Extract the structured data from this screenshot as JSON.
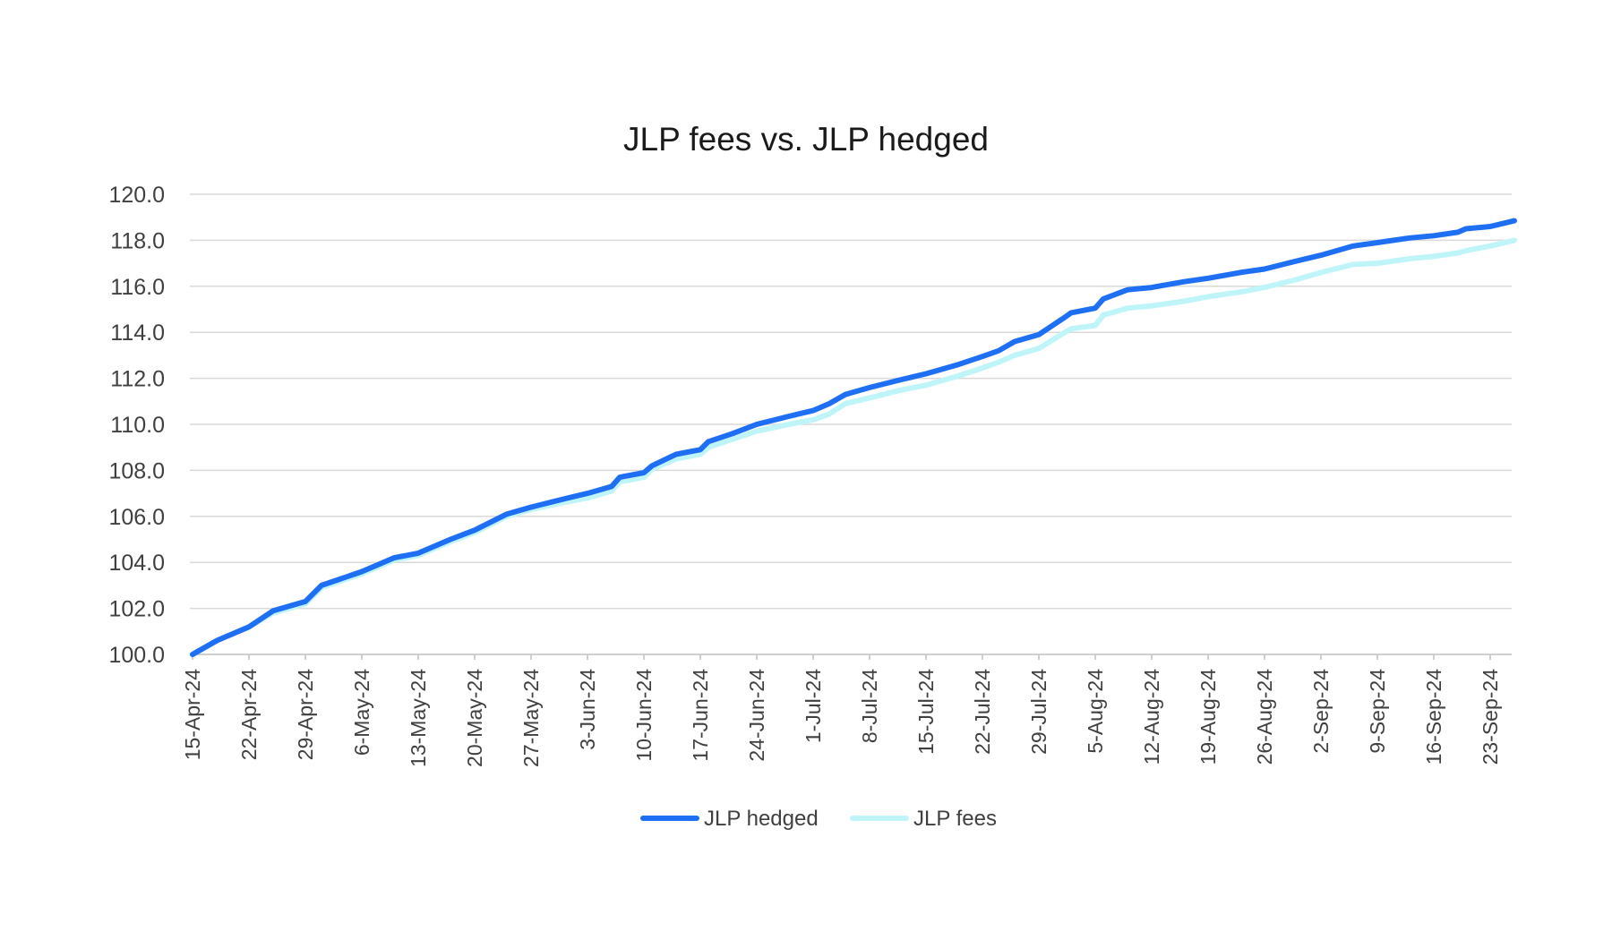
{
  "chart_data": {
    "type": "line",
    "title": "JLP fees vs. JLP hedged",
    "xlabel": "",
    "ylabel": "",
    "x_start": "2024-04-15",
    "x_end": "2024-09-26",
    "x_tick_labels": [
      "15-Apr-24",
      "22-Apr-24",
      "29-Apr-24",
      "6-May-24",
      "13-May-24",
      "20-May-24",
      "27-May-24",
      "3-Jun-24",
      "10-Jun-24",
      "17-Jun-24",
      "24-Jun-24",
      "1-Jul-24",
      "8-Jul-24",
      "15-Jul-24",
      "22-Jul-24",
      "29-Jul-24",
      "5-Aug-24",
      "12-Aug-24",
      "19-Aug-24",
      "26-Aug-24",
      "2-Sep-24",
      "9-Sep-24",
      "16-Sep-24",
      "23-Sep-24"
    ],
    "y_tick_labels": [
      "100.0",
      "102.0",
      "104.0",
      "106.0",
      "108.0",
      "110.0",
      "112.0",
      "114.0",
      "116.0",
      "118.0",
      "120.0"
    ],
    "ylim": [
      100,
      120
    ],
    "grid": true,
    "legend_position": "bottom",
    "series": [
      {
        "name": "JLP hedged",
        "color": "#1f6ff5",
        "x": [
          "2024-04-15",
          "2024-04-18",
          "2024-04-22",
          "2024-04-25",
          "2024-04-29",
          "2024-05-01",
          "2024-05-06",
          "2024-05-10",
          "2024-05-13",
          "2024-05-17",
          "2024-05-20",
          "2024-05-24",
          "2024-05-27",
          "2024-05-31",
          "2024-06-03",
          "2024-06-06",
          "2024-06-07",
          "2024-06-10",
          "2024-06-11",
          "2024-06-14",
          "2024-06-17",
          "2024-06-18",
          "2024-06-21",
          "2024-06-24",
          "2024-06-28",
          "2024-07-01",
          "2024-07-03",
          "2024-07-05",
          "2024-07-08",
          "2024-07-12",
          "2024-07-15",
          "2024-07-19",
          "2024-07-22",
          "2024-07-24",
          "2024-07-26",
          "2024-07-29",
          "2024-08-01",
          "2024-08-02",
          "2024-08-05",
          "2024-08-06",
          "2024-08-09",
          "2024-08-12",
          "2024-08-16",
          "2024-08-19",
          "2024-08-23",
          "2024-08-26",
          "2024-08-30",
          "2024-09-02",
          "2024-09-06",
          "2024-09-09",
          "2024-09-13",
          "2024-09-16",
          "2024-09-19",
          "2024-09-20",
          "2024-09-23",
          "2024-09-26"
        ],
        "values": [
          100.0,
          100.6,
          101.2,
          101.9,
          102.3,
          103.0,
          103.6,
          104.2,
          104.4,
          105.0,
          105.4,
          106.1,
          106.4,
          106.75,
          107.0,
          107.3,
          107.7,
          107.9,
          108.2,
          108.7,
          108.9,
          109.25,
          109.6,
          110.0,
          110.35,
          110.6,
          110.9,
          111.3,
          111.6,
          111.95,
          112.2,
          112.6,
          112.95,
          113.2,
          113.6,
          113.9,
          114.6,
          114.85,
          115.05,
          115.45,
          115.85,
          115.95,
          116.2,
          116.35,
          116.6,
          116.75,
          117.1,
          117.35,
          117.75,
          117.9,
          118.1,
          118.2,
          118.35,
          118.5,
          118.6,
          118.85
        ]
      },
      {
        "name": "JLP fees",
        "color": "#bff5f9",
        "x": [
          "2024-04-15",
          "2024-04-18",
          "2024-04-22",
          "2024-04-25",
          "2024-04-29",
          "2024-05-01",
          "2024-05-06",
          "2024-05-10",
          "2024-05-13",
          "2024-05-17",
          "2024-05-20",
          "2024-05-24",
          "2024-05-27",
          "2024-05-31",
          "2024-06-03",
          "2024-06-06",
          "2024-06-07",
          "2024-06-10",
          "2024-06-11",
          "2024-06-14",
          "2024-06-17",
          "2024-06-18",
          "2024-06-21",
          "2024-06-24",
          "2024-06-28",
          "2024-07-01",
          "2024-07-03",
          "2024-07-05",
          "2024-07-08",
          "2024-07-12",
          "2024-07-15",
          "2024-07-19",
          "2024-07-22",
          "2024-07-24",
          "2024-07-26",
          "2024-07-29",
          "2024-08-01",
          "2024-08-02",
          "2024-08-05",
          "2024-08-06",
          "2024-08-09",
          "2024-08-12",
          "2024-08-16",
          "2024-08-19",
          "2024-08-23",
          "2024-08-26",
          "2024-08-30",
          "2024-09-02",
          "2024-09-06",
          "2024-09-09",
          "2024-09-13",
          "2024-09-16",
          "2024-09-19",
          "2024-09-20",
          "2024-09-23",
          "2024-09-26"
        ],
        "values": [
          100.0,
          100.6,
          101.2,
          101.8,
          102.2,
          102.9,
          103.5,
          104.1,
          104.3,
          104.9,
          105.3,
          106.0,
          106.3,
          106.6,
          106.8,
          107.1,
          107.5,
          107.7,
          108.05,
          108.5,
          108.7,
          109.0,
          109.35,
          109.7,
          110.0,
          110.2,
          110.45,
          110.9,
          111.15,
          111.5,
          111.7,
          112.1,
          112.45,
          112.7,
          113.0,
          113.3,
          113.95,
          114.15,
          114.3,
          114.75,
          115.05,
          115.15,
          115.35,
          115.55,
          115.75,
          115.95,
          116.3,
          116.6,
          116.95,
          117.0,
          117.2,
          117.3,
          117.45,
          117.55,
          117.75,
          118.0
        ]
      }
    ]
  }
}
